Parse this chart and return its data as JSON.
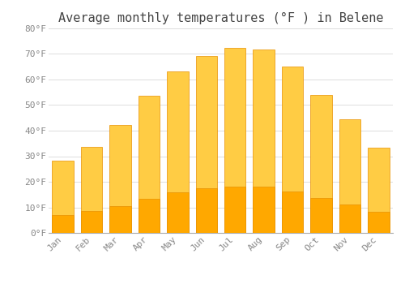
{
  "title": "Average monthly temperatures (°F ) in Belene",
  "months": [
    "Jan",
    "Feb",
    "Mar",
    "Apr",
    "May",
    "Jun",
    "Jul",
    "Aug",
    "Sep",
    "Oct",
    "Nov",
    "Dec"
  ],
  "values": [
    28.4,
    33.8,
    42.1,
    53.6,
    63.1,
    69.3,
    72.5,
    71.8,
    65.1,
    54.1,
    44.6,
    33.4
  ],
  "bar_color_top": "#FFCC44",
  "bar_color_bot": "#FFA800",
  "bar_edge_color": "#E89000",
  "background_color": "#FFFFFF",
  "plot_bg_color": "#FFFFFF",
  "grid_color": "#DDDDDD",
  "title_color": "#444444",
  "tick_label_color": "#888888",
  "axis_color": "#AAAAAA",
  "ylim": [
    0,
    80
  ],
  "yticks": [
    0,
    10,
    20,
    30,
    40,
    50,
    60,
    70,
    80
  ],
  "ytick_labels": [
    "0°F",
    "10°F",
    "20°F",
    "30°F",
    "40°F",
    "50°F",
    "60°F",
    "70°F",
    "80°F"
  ],
  "title_fontsize": 11,
  "tick_fontsize": 8,
  "font_family": "monospace"
}
